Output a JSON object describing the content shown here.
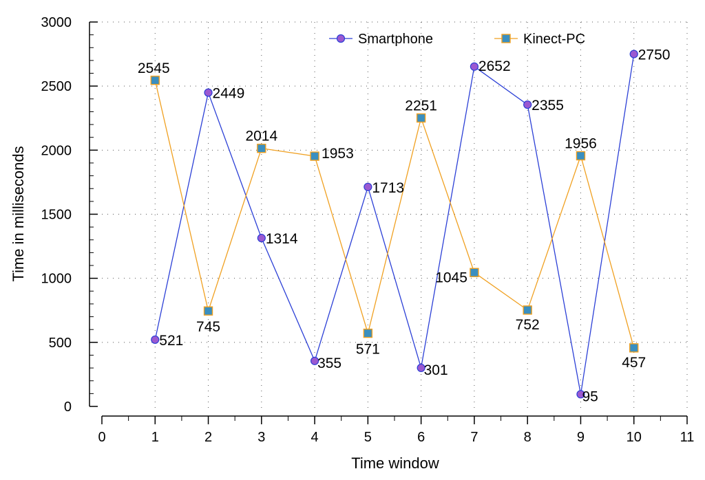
{
  "chart_data": {
    "type": "line",
    "xlabel": "Time window",
    "ylabel": "Time in milliseconds",
    "xlim": [
      0,
      11
    ],
    "ylim": [
      0,
      3000
    ],
    "x_ticks": [
      0,
      1,
      2,
      3,
      4,
      5,
      6,
      7,
      8,
      9,
      10,
      11
    ],
    "x_tick_labels": [
      "0",
      "1",
      "2",
      "3",
      "4",
      "5",
      "6",
      "7",
      "8",
      "9",
      "10",
      "11"
    ],
    "y_ticks": [
      0,
      500,
      1000,
      1500,
      2000,
      2500,
      3000
    ],
    "y_tick_labels": [
      "0",
      "500",
      "1000",
      "1500",
      "2000",
      "2500",
      "3000"
    ],
    "grid": true,
    "legend_position": "top-right",
    "x": [
      1,
      2,
      3,
      4,
      5,
      6,
      7,
      8,
      9,
      10
    ],
    "series": [
      {
        "name": "Smartphone",
        "values": [
          521,
          2449,
          1314,
          355,
          1713,
          301,
          2652,
          2355,
          95,
          2750
        ],
        "labels": [
          "521",
          "2449",
          "1314",
          "355",
          "1713",
          "301",
          "2652",
          "2355",
          "95",
          "2750"
        ],
        "line_color": "#2b3fd6",
        "marker": "circle",
        "marker_fill": "#9b59d0"
      },
      {
        "name": "Kinect-PC",
        "values": [
          2545,
          745,
          2014,
          1953,
          571,
          2251,
          1045,
          752,
          1956,
          457
        ],
        "labels": [
          "2545",
          "745",
          "2014",
          "1953",
          "571",
          "2251",
          "1045",
          "752",
          "1956",
          "457"
        ],
        "line_color": "#f0a020",
        "marker": "square",
        "marker_fill": "#3a8fc0"
      }
    ]
  }
}
